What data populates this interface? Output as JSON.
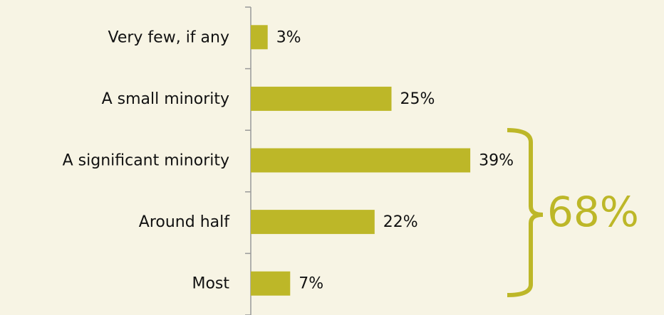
{
  "chart_data": {
    "type": "hbar",
    "categories": [
      "Very few, if any",
      "A small minority",
      "A significant minority",
      "Around half",
      "Most"
    ],
    "values": [
      3,
      25,
      39,
      22,
      7
    ],
    "value_labels": [
      "3%",
      "25%",
      "39%",
      "22%",
      "7%"
    ],
    "color": "#bdb728",
    "xlim": [
      0,
      40
    ],
    "annotation": "68%"
  }
}
